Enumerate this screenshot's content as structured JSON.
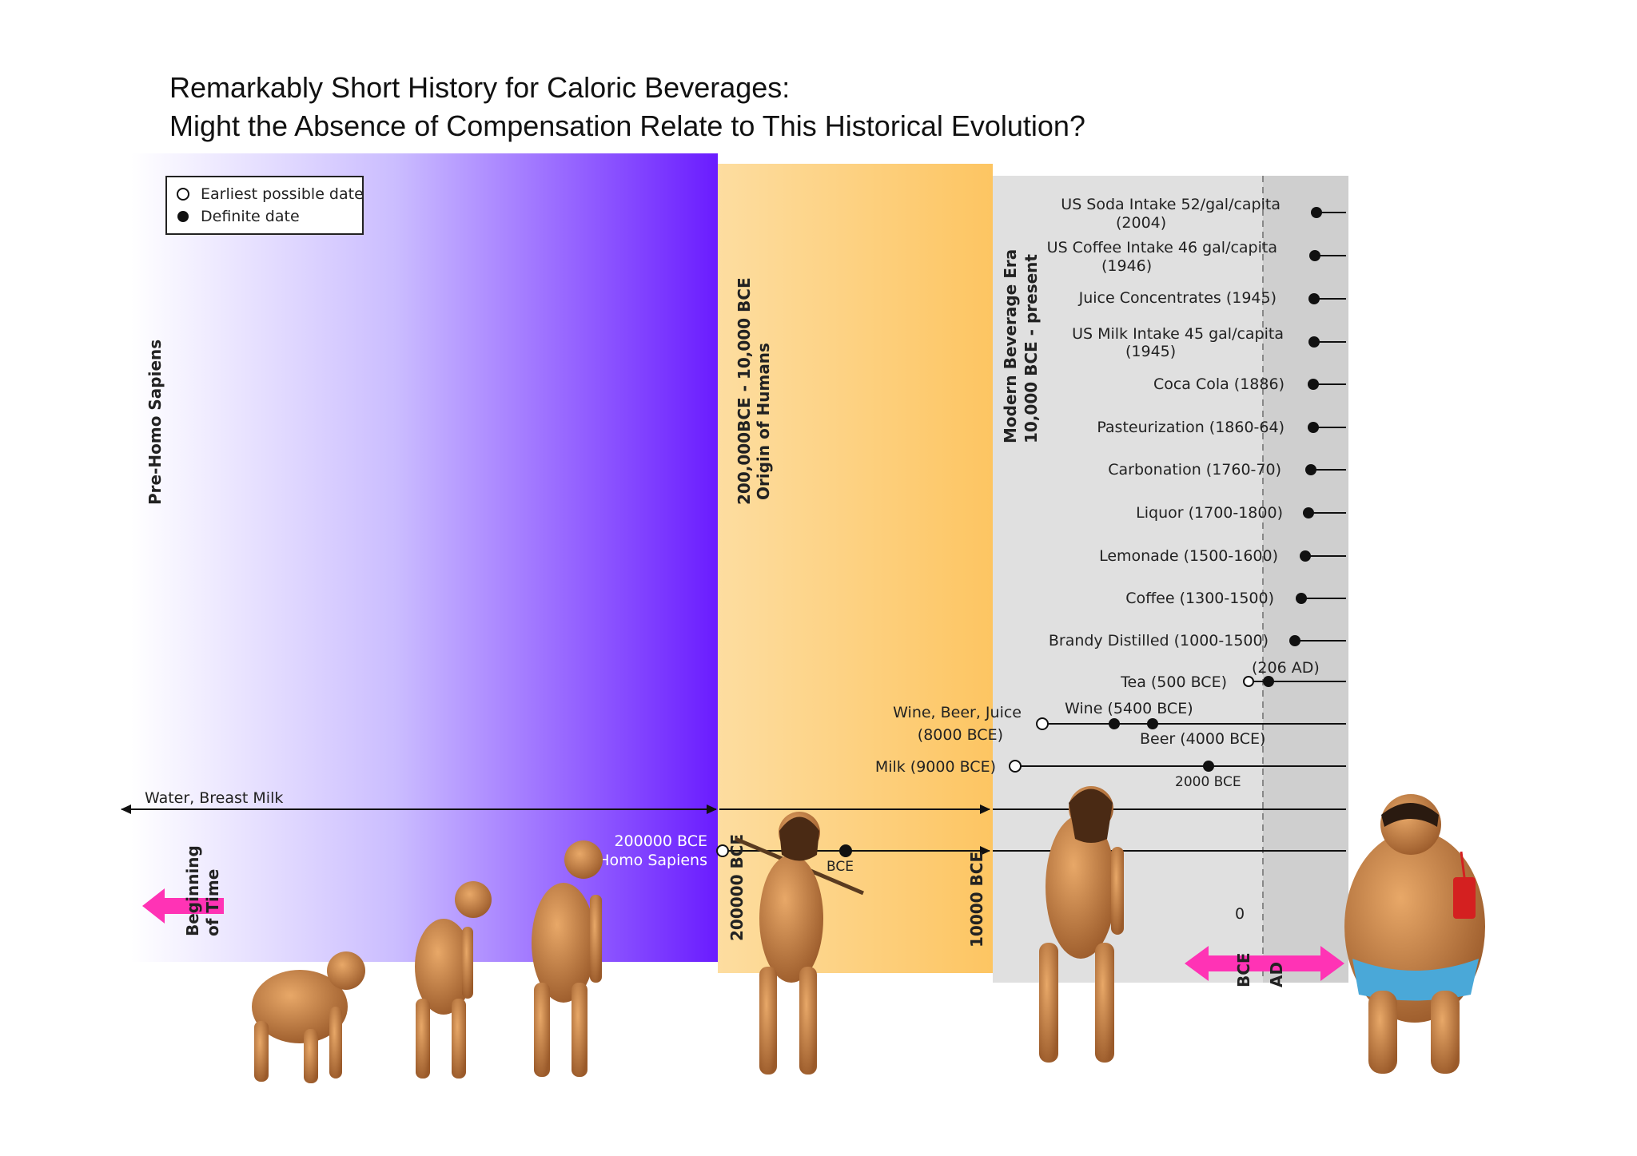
{
  "title": {
    "line1": "Remarkably Short History for Caloric Beverages:",
    "line2": "Might the Absence of Compensation Relate to This Historical Evolution?"
  },
  "legend": {
    "open": "Earliest possible date",
    "filled": "Definite date"
  },
  "eras": {
    "pre": "Pre-Homo Sapiens",
    "origin_line1": "200,000BCE - 10,000 BCE",
    "origin_line2": "Origin of Humans",
    "modern_line1": "Modern Beverage Era",
    "modern_line2": "10,000 BCE - present"
  },
  "modern_events": [
    {
      "line1": "US Soda Intake 52/gal/capita",
      "line2": "(2004)"
    },
    {
      "line1": "US Coffee Intake 46 gal/capita",
      "line2": "(1946)"
    },
    {
      "line1": "Juice Concentrates (1945)",
      "line2": ""
    },
    {
      "line1": "US Milk Intake 45 gal/capita",
      "line2": "(1945)"
    },
    {
      "line1": "Coca Cola (1886)",
      "line2": ""
    },
    {
      "line1": "Pasteurization (1860-64)",
      "line2": ""
    },
    {
      "line1": "Carbonation (1760-70)",
      "line2": ""
    },
    {
      "line1": "Liquor (1700-1800)",
      "line2": ""
    },
    {
      "line1": "Lemonade (1500-1600)",
      "line2": ""
    },
    {
      "line1": "Coffee (1300-1500)",
      "line2": ""
    },
    {
      "line1": "Brandy Distilled (1000-1500)",
      "line2": ""
    }
  ],
  "tea": {
    "label": "Tea (500 BCE)",
    "ad_label": "(206 AD)"
  },
  "wine_group": {
    "line1": "Wine, Beer, Juice",
    "line2": "(8000 BCE)",
    "wine": "Wine (5400 BCE)",
    "beer": "Beer (4000 BCE)"
  },
  "milk": {
    "label": "Milk (9000 BCE)",
    "sub": "2000 BCE"
  },
  "water": {
    "label": "Water, Breast Milk"
  },
  "homo": {
    "line1": "200000 BCE",
    "line2": "Homo Sapiens",
    "partial": "BCE"
  },
  "axis": {
    "begin_line1": "Beginning",
    "begin_line2": "of Time",
    "bce200k": "200000 BCE",
    "bce10k": "10000 BCE",
    "zero": "0",
    "bce": "BCE",
    "ad": "AD"
  },
  "colors": {
    "purple": "#6a1cff",
    "orange": "#fdc562",
    "gray": "#e0e0e0",
    "dark_gray": "#cfcfcf",
    "magenta": "#ff33b5",
    "skin": "#c07840"
  }
}
